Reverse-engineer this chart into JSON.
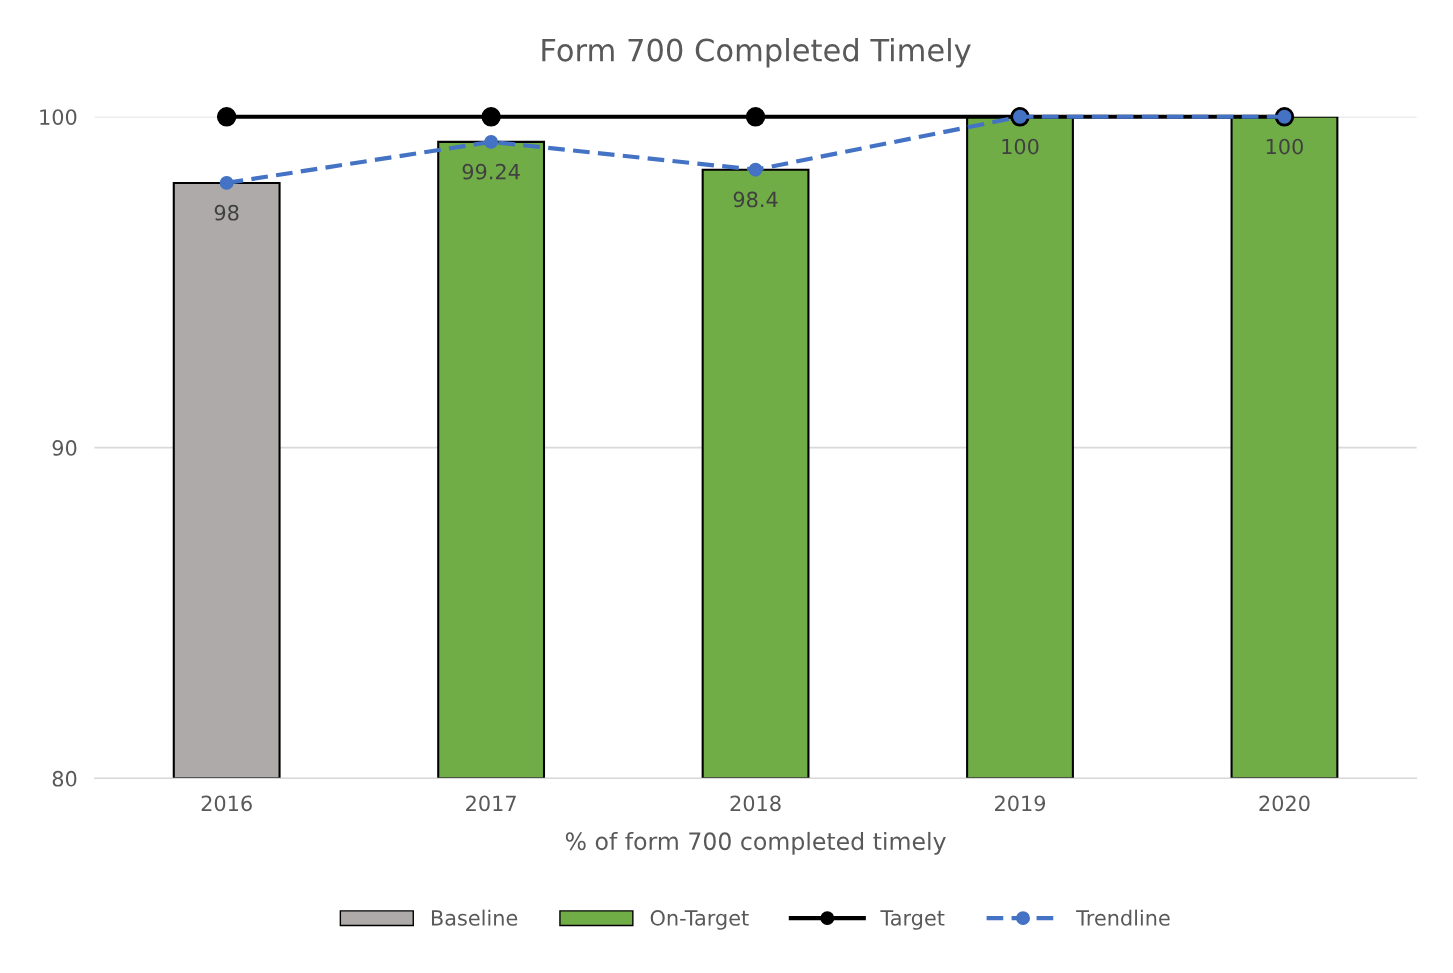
{
  "chart_data": {
    "type": "bar",
    "title": "Form 700 Completed Timely",
    "xlabel": "% of form 700 completed timely",
    "categories": [
      "2016",
      "2017",
      "2018",
      "2019",
      "2020"
    ],
    "series": [
      {
        "name": "Baseline",
        "color": "#aeaaaa",
        "values": [
          98,
          null,
          null,
          null,
          null
        ],
        "value_labels": [
          "98",
          null,
          null,
          null,
          null
        ]
      },
      {
        "name": "On-Target",
        "color": "#70ad47",
        "values": [
          null,
          99.24,
          98.4,
          100,
          100
        ],
        "value_labels": [
          null,
          "99.24",
          "98.4",
          "100",
          "100"
        ]
      },
      {
        "name": "Target",
        "type": "line",
        "color": "#000000",
        "marker": "circle",
        "line_style": "solid",
        "values": [
          100,
          100,
          100,
          100,
          100
        ]
      },
      {
        "name": "Trendline",
        "type": "line",
        "color": "#4472c4",
        "marker": "circle",
        "line_style": "dashed",
        "values": [
          98,
          99.24,
          98.4,
          100,
          100
        ]
      }
    ],
    "ylim": [
      80,
      100
    ],
    "yticks": [
      80,
      90,
      100
    ],
    "grid": "y",
    "legend": "bottom"
  }
}
